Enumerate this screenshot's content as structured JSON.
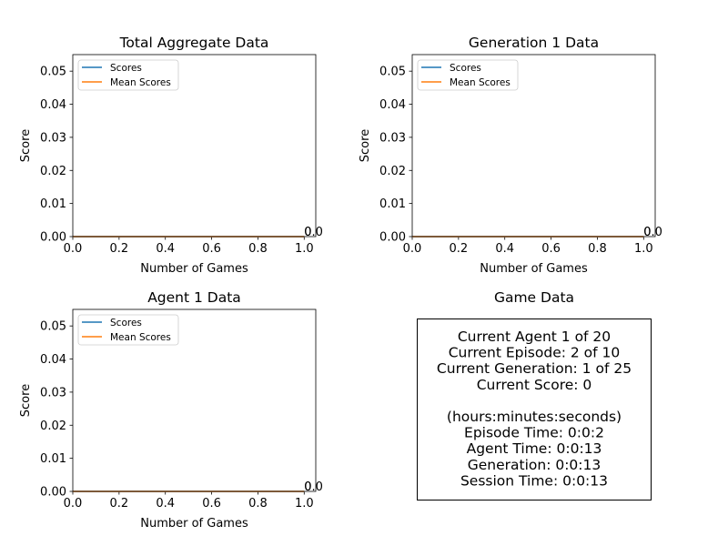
{
  "chart_data": [
    {
      "type": "line",
      "title": "Total Aggregate Data",
      "xlabel": "Number of Games",
      "ylabel": "Score",
      "xlim": [
        0.0,
        1.05
      ],
      "ylim": [
        0.0,
        0.055
      ],
      "xticks": [
        "0.0",
        "0.2",
        "0.4",
        "0.6",
        "0.8",
        "1.0"
      ],
      "yticks": [
        "0.00",
        "0.01",
        "0.02",
        "0.03",
        "0.04",
        "0.05"
      ],
      "legend_position": "top-left",
      "x": [
        0,
        1
      ],
      "series": [
        {
          "name": "Scores",
          "color": "#1f77b4",
          "values": [
            0,
            0
          ],
          "end_label": "0"
        },
        {
          "name": "Mean Scores",
          "color": "#ff7f0e",
          "values": [
            0,
            0
          ],
          "end_label": "0.0"
        }
      ]
    },
    {
      "type": "line",
      "title": "Generation 1 Data",
      "xlabel": "Number of Games",
      "ylabel": "Score",
      "xlim": [
        0.0,
        1.05
      ],
      "ylim": [
        0.0,
        0.055
      ],
      "xticks": [
        "0.0",
        "0.2",
        "0.4",
        "0.6",
        "0.8",
        "1.0"
      ],
      "yticks": [
        "0.00",
        "0.01",
        "0.02",
        "0.03",
        "0.04",
        "0.05"
      ],
      "legend_position": "top-left",
      "x": [
        0,
        1
      ],
      "series": [
        {
          "name": "Scores",
          "color": "#1f77b4",
          "values": [
            0,
            0
          ],
          "end_label": "0"
        },
        {
          "name": "Mean Scores",
          "color": "#ff7f0e",
          "values": [
            0,
            0
          ],
          "end_label": "0.0"
        }
      ]
    },
    {
      "type": "line",
      "title": "Agent 1 Data",
      "xlabel": "Number of Games",
      "ylabel": "Score",
      "xlim": [
        0.0,
        1.05
      ],
      "ylim": [
        0.0,
        0.055
      ],
      "xticks": [
        "0.0",
        "0.2",
        "0.4",
        "0.6",
        "0.8",
        "1.0"
      ],
      "yticks": [
        "0.00",
        "0.01",
        "0.02",
        "0.03",
        "0.04",
        "0.05"
      ],
      "legend_position": "top-left",
      "x": [
        0,
        1
      ],
      "series": [
        {
          "name": "Scores",
          "color": "#1f77b4",
          "values": [
            0,
            0
          ],
          "end_label": "0"
        },
        {
          "name": "Mean Scores",
          "color": "#ff7f0e",
          "values": [
            0,
            0
          ],
          "end_label": "0.0"
        }
      ]
    }
  ],
  "game_data": {
    "title": "Game Data",
    "lines": [
      "Current Agent 1 of 20",
      "Current Episode: 2 of 10",
      "Current Generation: 1 of 25",
      "Current Score: 0",
      "",
      "(hours:minutes:seconds)",
      "Episode Time: 0:0:2",
      "Agent Time: 0:0:13",
      "Generation: 0:0:13",
      "Session Time: 0:0:13"
    ]
  }
}
